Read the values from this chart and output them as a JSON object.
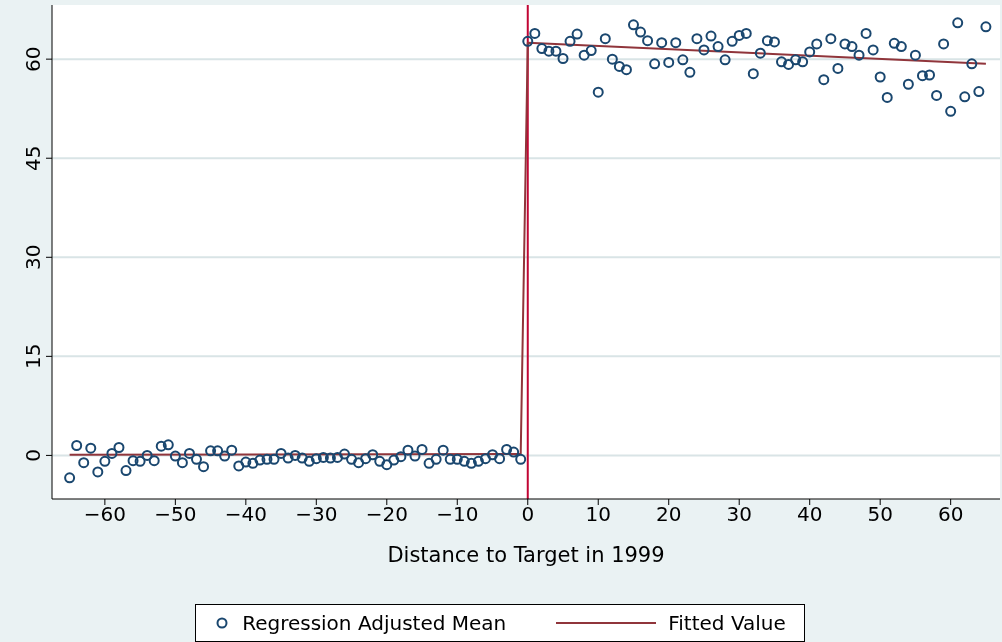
{
  "chart_data": {
    "type": "scatter",
    "xlabel": "Distance to Target in 1999",
    "xlim": [
      -67.5,
      67
    ],
    "xticks": [
      -60,
      -50,
      -40,
      -30,
      -20,
      -10,
      0,
      10,
      20,
      30,
      40,
      50,
      60
    ],
    "ylim": [
      -6.6,
      68.2
    ],
    "yticks": [
      0,
      15,
      30,
      45,
      60
    ],
    "grid": "y",
    "legend": "bottom",
    "series": [
      {
        "name": "Regression Adjusted Mean",
        "color": "#1a476f",
        "marker": "circle",
        "x": [
          -65,
          -64,
          -63,
          -62,
          -61,
          -60,
          -59,
          -58,
          -57,
          -56,
          -55,
          -54,
          -53,
          -52,
          -51,
          -50,
          -49,
          -48,
          -47,
          -46,
          -45,
          -44,
          -43,
          -42,
          -41,
          -40,
          -39,
          -38,
          -37,
          -36,
          -35,
          -34,
          -33,
          -32,
          -31,
          -30,
          -29,
          -28,
          -27,
          -26,
          -25,
          -24,
          -23,
          -22,
          -21,
          -20,
          -19,
          -18,
          -17,
          -16,
          -15,
          -14,
          -13,
          -12,
          -11,
          -10,
          -9,
          -8,
          -7,
          -6,
          -5,
          -4,
          -3,
          -2,
          -1,
          0,
          1,
          2,
          3,
          4,
          5,
          6,
          7,
          8,
          9,
          10,
          11,
          12,
          13,
          14,
          15,
          16,
          17,
          18,
          19,
          20,
          21,
          22,
          23,
          24,
          25,
          26,
          27,
          28,
          29,
          30,
          31,
          32,
          33,
          34,
          35,
          36,
          37,
          38,
          39,
          40,
          41,
          42,
          43,
          44,
          45,
          46,
          47,
          48,
          49,
          50,
          51,
          52,
          53,
          54,
          55,
          56,
          57,
          58,
          59,
          60,
          61,
          62,
          63,
          64,
          65
        ],
        "values": [
          -3.4,
          1.5,
          -1.1,
          1.1,
          -2.5,
          -0.9,
          0.3,
          1.2,
          -2.3,
          -0.8,
          -0.9,
          0.0,
          -0.8,
          1.4,
          1.6,
          -0.1,
          -1.1,
          0.3,
          -0.6,
          -1.7,
          0.7,
          0.7,
          -0.1,
          0.8,
          -1.6,
          -1.0,
          -1.2,
          -0.7,
          -0.6,
          -0.6,
          0.3,
          -0.4,
          0.0,
          -0.4,
          -0.9,
          -0.5,
          -0.3,
          -0.4,
          -0.3,
          0.2,
          -0.6,
          -1.1,
          -0.5,
          0.1,
          -0.9,
          -1.4,
          -0.7,
          -0.2,
          0.8,
          -0.1,
          0.9,
          -1.2,
          -0.6,
          0.8,
          -0.6,
          -0.6,
          -0.9,
          -1.2,
          -0.9,
          -0.5,
          0.1,
          -0.5,
          0.9,
          0.5,
          -0.6,
          62.7,
          63.9,
          61.6,
          61.2,
          61.2,
          60.1,
          62.7,
          63.8,
          60.6,
          61.3,
          55.0,
          63.1,
          60.0,
          58.9,
          58.4,
          65.2,
          64.1,
          62.8,
          59.3,
          62.5,
          59.5,
          62.5,
          59.9,
          58.0,
          63.1,
          61.4,
          63.5,
          61.9,
          59.9,
          62.7,
          63.6,
          63.9,
          57.8,
          60.9,
          62.8,
          62.6,
          59.6,
          59.2,
          59.9,
          59.6,
          61.1,
          62.3,
          56.9,
          63.1,
          58.6,
          62.3,
          61.9,
          60.6,
          63.9,
          61.4,
          57.3,
          54.2,
          62.4,
          61.9,
          56.2,
          60.6,
          57.5,
          57.6,
          54.5,
          62.3,
          52.1,
          65.5,
          54.3,
          59.3,
          55.1,
          64.9
        ]
      },
      {
        "name": "Fitted Value",
        "type": "line",
        "color": "#90353b",
        "x": [
          -65,
          -1,
          0,
          65
        ],
        "values": [
          0.1,
          0.2,
          62.5,
          59.3
        ]
      }
    ],
    "ref_lines": [
      {
        "axis": "x",
        "value": 0,
        "color": "#c10534"
      }
    ]
  }
}
